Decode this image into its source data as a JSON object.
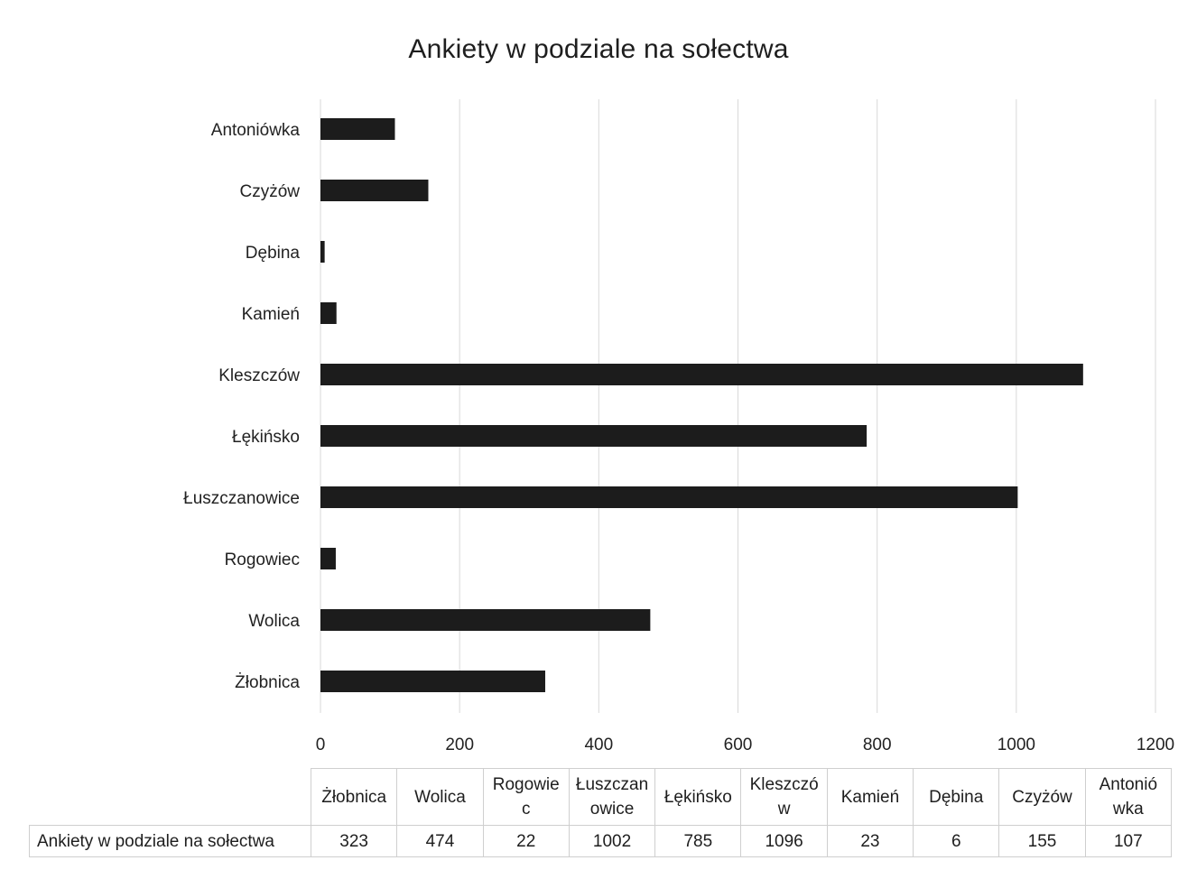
{
  "chart_data": {
    "type": "bar",
    "orientation": "horizontal",
    "title": "Ankiety w podziale na sołectwa",
    "categories": [
      "Antoniówka",
      "Czyżów",
      "Dębina",
      "Kamień",
      "Kleszczów",
      "Łękińsko",
      "Łuszczanowice",
      "Rogowiec",
      "Wolica",
      "Żłobnica"
    ],
    "series": [
      {
        "name": "Ankiety w podziale na sołectwa",
        "values": [
          107,
          155,
          6,
          23,
          1096,
          785,
          1002,
          22,
          474,
          323
        ]
      }
    ],
    "xlim": [
      0,
      1200
    ],
    "x_ticks": [
      "0",
      "200",
      "400",
      "600",
      "800",
      "1000",
      "1200"
    ],
    "grid": true,
    "bar_color": "#1c1c1c",
    "data_table": {
      "row_label": "Ankiety w podziale na sołectwa",
      "headers": [
        "Żłobnica",
        "Wolica",
        "Rogowie c",
        "Łuszczan owice",
        "Łękińsko",
        "Kleszczó w",
        "Kamień",
        "Dębina",
        "Czyżów",
        "Antonió wka"
      ],
      "values": [
        "323",
        "474",
        "22",
        "1002",
        "785",
        "1096",
        "23",
        "6",
        "155",
        "107"
      ]
    }
  }
}
